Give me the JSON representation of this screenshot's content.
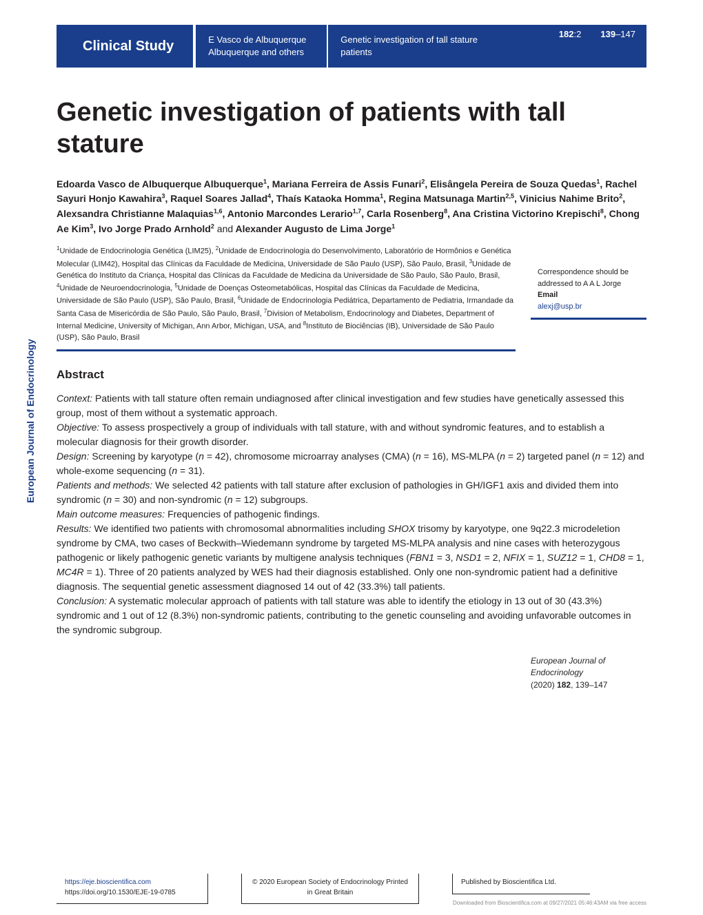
{
  "header": {
    "section_type": "Clinical Study",
    "short_authors": "E Vasco de Albuquerque Albuquerque and others",
    "running_title": "Genetic investigation of tall stature patients",
    "volume": "182",
    "issue": "2",
    "page_start": "139",
    "page_range_end": "147"
  },
  "title": "Genetic investigation of patients with tall stature",
  "authors_html": "Edoarda Vasco de Albuquerque Albuquerque<sup>1</sup>, Mariana Ferreira de Assis Funari<sup>2</sup>, Elisângela Pereira de Souza Quedas<sup>1</sup>, Rachel Sayuri Honjo Kawahira<sup>3</sup>, Raquel Soares Jallad<sup>4</sup>, Thaís Kataoka Homma<sup>1</sup>, Regina Matsunaga Martin<sup>2,5</sup>, Vinicius Nahime Brito<sup>2</sup>, Alexsandra Christianne Malaquias<sup>1,6</sup>, Antonio Marcondes Lerario<sup>1,7</sup>, Carla Rosenberg<sup>8</sup>, Ana Cristina Victorino Krepischi<sup>8</sup>, Chong Ae Kim<sup>3</sup>, Ivo Jorge Prado Arnhold<sup>2</sup> <span class=\"and\">and</span> Alexander Augusto de Lima Jorge<sup>1</sup>",
  "affiliations_html": "<sup>1</sup>Unidade de Endocrinologia Genética (LIM25), <sup>2</sup>Unidade de Endocrinologia do Desenvolvimento, Laboratório de Hormônios e Genética Molecular (LIM42), Hospital das Clínicas da Faculdade de Medicina, Universidade de São Paulo (USP), São Paulo, Brasil, <sup>3</sup>Unidade de Genética do Instituto da Criança, Hospital das Clínicas da Faculdade de Medicina da Universidade de São Paulo, São Paulo, Brasil, <sup>4</sup>Unidade de Neuroendocrinologia, <sup>5</sup>Unidade de Doenças Osteometabólicas, Hospital das Clínicas da Faculdade de Medicina, Universidade de São Paulo (USP), São Paulo, Brasil, <sup>6</sup>Unidade de Endocrinologia Pediátrica, Departamento de Pediatria, Irmandade da Santa Casa de Misericórdia de São Paulo, São Paulo, Brasil, <sup>7</sup>Division of Metabolism, Endocrinology and Diabetes, Department of Internal Medicine, University of Michigan, Ann Arbor, Michigan, USA, and <sup>8</sup>Instituto de Biociências (IB), Universidade de São Paulo (USP), São Paulo, Brasil",
  "correspondence": {
    "lines": "Correspondence should be addressed to A A L Jorge",
    "email_label": "Email",
    "email": "alexj@usp.br"
  },
  "side_journal": "European Journal of Endocrinology",
  "abstract": {
    "heading": "Abstract",
    "context": "Patients with tall stature often remain undiagnosed after clinical investigation and few studies have genetically assessed this group, most of them without a systematic approach.",
    "objective": "To assess prospectively a group of individuals with tall stature, with and without syndromic features, and to establish a molecular diagnosis for their growth disorder.",
    "design_html": "Screening by karyotype (<em>n</em> = 42), chromosome microarray analyses (CMA) (<em>n</em> = 16), MS-MLPA (<em>n</em> = 2) targeted panel (<em>n</em> = 12) and whole-exome sequencing (<em>n</em> = 31).",
    "patients_html": "We selected 42 patients with tall stature after exclusion of pathologies in GH/IGF1 axis and divided them into syndromic (<em>n</em> = 30) and non-syndromic (<em>n</em> = 12) subgroups.",
    "outcome": "Frequencies of pathogenic findings.",
    "results_html": "We identified two patients with chromosomal abnormalities including <em>SHOX</em> trisomy by karyotype, one 9q22.3 microdeletion syndrome by CMA, two cases of Beckwith–Wiedemann syndrome by targeted MS-MLPA analysis and nine cases with heterozygous pathogenic or likely pathogenic genetic variants by multigene analysis techniques (<em>FBN1</em> = 3, <em>NSD1</em> = 2, <em>NFIX</em> = 1, <em>SUZ12</em> = 1, <em>CHD8</em> = 1, <em>MC4R</em> = 1). Three of 20 patients analyzed by WES had their diagnosis established. Only one non-syndromic patient had a definitive diagnosis. The sequential genetic assessment diagnosed 14 out of 42 (33.3%) tall patients.",
    "conclusion": "A systematic molecular approach of patients with tall stature was able to identify the etiology in 13 out of 30 (43.3%) syndromic and 1 out of 12 (8.3%) non-syndromic patients, contributing to the genetic counseling and avoiding unfavorable outcomes in the syndromic subgroup."
  },
  "citation": {
    "journal": "European Journal of Endocrinology",
    "year": "(2020)",
    "volume": "182",
    "pages": "139–147"
  },
  "footer": {
    "url": "https://eje.bioscientifica.com",
    "doi": "https://doi.org/10.1530/EJE-19-0785",
    "copyright": "© 2020 European Society of Endocrinology Printed in Great Britain",
    "publisher": "Published by Bioscientifica Ltd.",
    "download_note": "Downloaded from Bioscientifica.com at 09/27/2021 05:46:43AM via free access"
  },
  "colors": {
    "brand": "#1a3e8b",
    "text": "#231f20"
  }
}
